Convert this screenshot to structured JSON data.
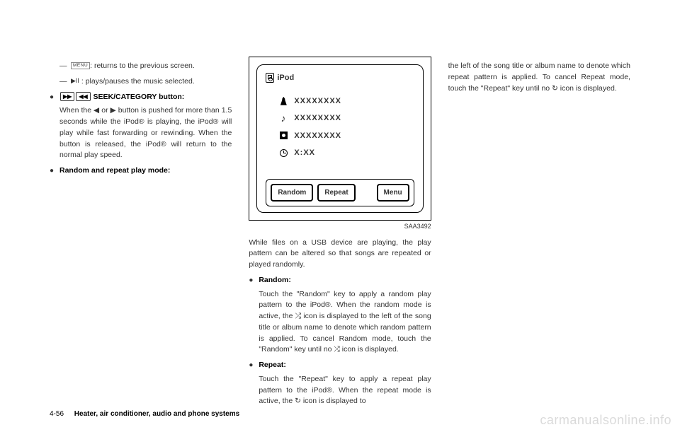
{
  "col1": {
    "dash1_pre": "",
    "dash1_glyph": "MENU",
    "dash1_post": ": returns to the previous screen.",
    "dash2_pre": "",
    "dash2_glyph": "▶II",
    "dash2_post": " : plays/pauses the music selected.",
    "bullet1_btn1": "▶▶",
    "bullet1_btn2": "◀◀",
    "bullet1_label": "SEEK/CATEGORY button:",
    "para1": "When the  ◀  or  ▶  button is pushed for more than 1.5 seconds while the iPod® is playing, the iPod® will play while fast forwarding or rewinding. When the button is released, the iPod® will return to the normal play speed.",
    "bullet2_label": "Random and repeat play mode:"
  },
  "screen": {
    "head": "iPod",
    "row1": "XXXXXXXX",
    "row2": "XXXXXXXX",
    "row3": "XXXXXXXX",
    "row4": "X:XX",
    "btn_random": "Random",
    "btn_repeat": "Repeat",
    "btn_menu": "Menu",
    "figlabel": "SAA3492"
  },
  "col2": {
    "intro": "While files on a USB device are playing, the play pattern can be altered so that songs are repeated or played randomly.",
    "bullet_random": "Random:",
    "para_random": "Touch the \"Random\" key to apply a random play pattern to the iPod®. When the random mode is active, the  ⤮  icon is displayed to the left of the song title or album name to denote which random pattern is applied. To cancel Random mode, touch the \"Random\" key until no  ⤮  icon is displayed.",
    "bullet_repeat": "Repeat:",
    "para_repeat": "Touch the \"Repeat\" key to apply a repeat play pattern to the iPod®. When the repeat mode is active, the  ↻  icon is displayed to"
  },
  "col3": {
    "para": "the left of the song title or album name to denote which repeat pattern is applied. To cancel Repeat mode, touch the \"Repeat\" key until no  ↻  icon is displayed."
  },
  "footer": {
    "page": "4-56",
    "section": "Heater, air conditioner, audio and phone systems"
  },
  "watermark": "carmanualsonline.info"
}
